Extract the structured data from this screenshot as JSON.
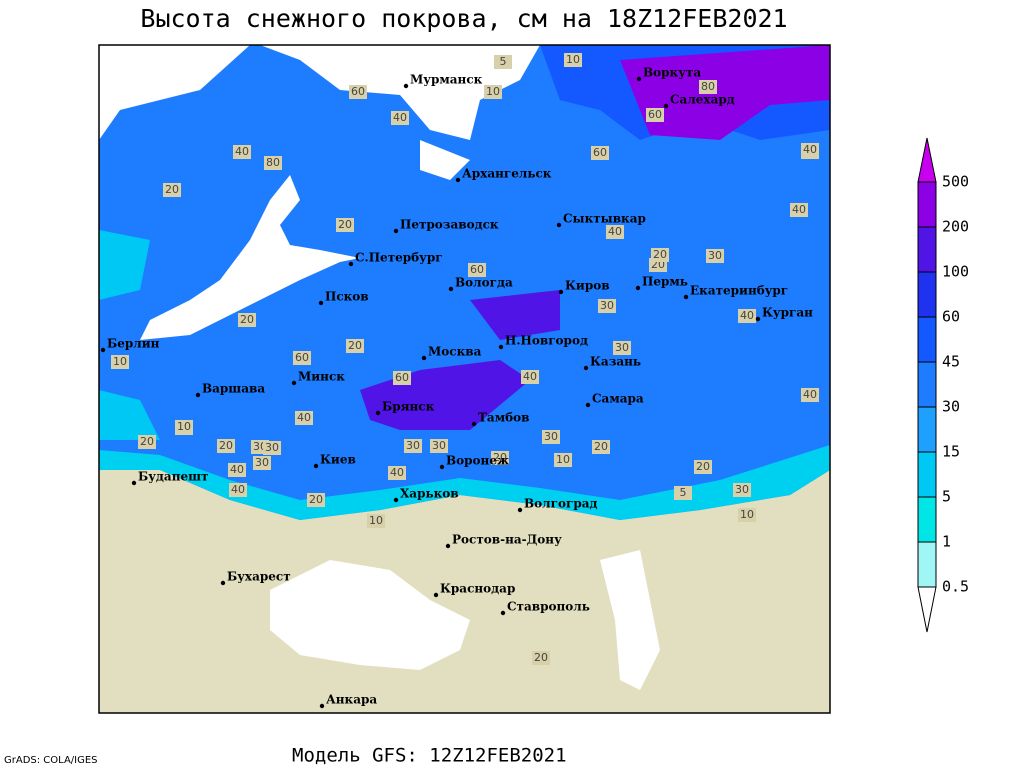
{
  "title": "Высота снежного покрова, см на 18Z12FEB2021",
  "footer": "Модель GFS: 12Z12FEB2021",
  "credit": "GrADS: COLA/IGES",
  "legend": {
    "levels": [
      0.5,
      1,
      5,
      15,
      30,
      45,
      60,
      100,
      200,
      500
    ],
    "colors": [
      "#ffffff",
      "#a0f5f5",
      "#00e6e6",
      "#00c8f5",
      "#1ea0ff",
      "#1e7cff",
      "#1458ff",
      "#1e32f0",
      "#5014e6",
      "#8c00e6",
      "#c800f0"
    ]
  },
  "cities": [
    "Мурманск",
    "Воркута",
    "Салехард",
    "Архангельск",
    "Сыктывкар",
    "Петрозаводск",
    "С.Петербург",
    "Вологда",
    "Киров",
    "Пермь",
    "Екатеринбург",
    "Курган",
    "Псков",
    "Берлин",
    "Н.Новгород",
    "Москва",
    "Казань",
    "Минск",
    "Варшава",
    "Самара",
    "Брянск",
    "Тамбов",
    "Воронеж",
    "Киев",
    "Будапешт",
    "Харьков",
    "Волгоград",
    "Ростов-на-Дону",
    "Бухарест",
    "Краснодар",
    "Ставрополь",
    "Анкара"
  ],
  "contour_labels": [
    5,
    10,
    10,
    60,
    80,
    60,
    40,
    80,
    40,
    60,
    20,
    20,
    40,
    40,
    60,
    40,
    20,
    30,
    40,
    30,
    60,
    40,
    60,
    30,
    20,
    20,
    30,
    30,
    40,
    40,
    20,
    30,
    40,
    20,
    30,
    10,
    20,
    40,
    30,
    20,
    40,
    20,
    10,
    10,
    20,
    10,
    40,
    30,
    20,
    5,
    20,
    30,
    10,
    20
  ]
}
